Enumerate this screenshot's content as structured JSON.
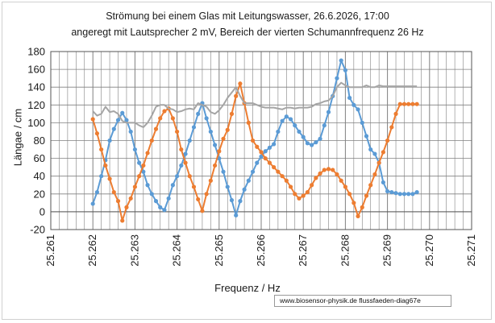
{
  "chart_data": {
    "type": "line",
    "title_line1": "Strömung bei einem Glas mit  Leitungswasser, 26.6.2026, 17:00",
    "title_line2": "angeregt mit Lautsprecher 2 mV,  Bereich der vierten Schumannfrequenz 26 Hz",
    "xlabel": "Frequenz / Hz",
    "ylabel": "Längae / cm",
    "xlim": [
      25.261,
      25.271
    ],
    "ylim": [
      -20,
      180
    ],
    "xticks": [
      "25.261",
      "25.262",
      "25.263",
      "25.264",
      "25.265",
      "25.266",
      "25.267",
      "25.268",
      "25.269",
      "25.270",
      "25.271"
    ],
    "yticks": [
      "-20",
      "0",
      "20",
      "40",
      "60",
      "80",
      "100",
      "120",
      "140",
      "160",
      "180"
    ],
    "grid": true,
    "minor_x_grid_step": 0.0002,
    "credit": "www.biosensor-physik.de  flussfaeden-diag67e",
    "colors": {
      "blue": "#5b9bd5",
      "orange": "#ed7d31",
      "gray": "#a5a5a5",
      "grid": "#808080"
    },
    "series": [
      {
        "color": "blue",
        "markers": true,
        "x": [
          25.262,
          25.2621,
          25.2622,
          25.2623,
          25.2624,
          25.2625,
          25.2626,
          25.2627,
          25.2628,
          25.2629,
          25.263,
          25.2631,
          25.2632,
          25.2633,
          25.2634,
          25.2635,
          25.2636,
          25.2637,
          25.2638,
          25.2639,
          25.264,
          25.2641,
          25.2642,
          25.2643,
          25.2644,
          25.2645,
          25.2646,
          25.2647,
          25.2648,
          25.2649,
          25.265,
          25.2651,
          25.2652,
          25.2653,
          25.2654,
          25.2655,
          25.2656,
          25.2657,
          25.2658,
          25.2659,
          25.266,
          25.2661,
          25.2662,
          25.2663,
          25.2664,
          25.2665,
          25.2666,
          25.2667,
          25.2668,
          25.2669,
          25.267,
          25.2671,
          25.2672,
          25.2673,
          25.2674,
          25.2675,
          25.2676,
          25.2677,
          25.2678,
          25.2679,
          25.268,
          25.2681,
          25.2682,
          25.2683,
          25.2684,
          25.2685,
          25.2686,
          25.2687,
          25.2688,
          25.2689,
          25.269,
          25.2691,
          25.2692,
          25.2693,
          25.2694,
          25.2695,
          25.2696,
          25.2697
        ],
        "y": [
          9,
          22,
          40,
          58,
          80,
          93,
          103,
          111,
          103,
          90,
          70,
          55,
          45,
          30,
          20,
          12,
          5,
          2,
          15,
          30,
          40,
          52,
          65,
          80,
          95,
          110,
          122,
          105,
          90,
          75,
          60,
          45,
          28,
          13,
          -4,
          12,
          25,
          35,
          45,
          55,
          62,
          68,
          72,
          76,
          90,
          102,
          107,
          104,
          97,
          90,
          84,
          77,
          75,
          78,
          82,
          97,
          112,
          130,
          150,
          170,
          159,
          128,
          120,
          115,
          100,
          85,
          70,
          65,
          55,
          33,
          23,
          22,
          21,
          20,
          20,
          20,
          20,
          22
        ],
        "x_note": "",
        "y_note": ""
      },
      {
        "color": "orange",
        "markers": true,
        "x": [
          25.262,
          25.2621,
          25.2622,
          25.2623,
          25.2624,
          25.2625,
          25.2626,
          25.2627,
          25.2628,
          25.2629,
          25.263,
          25.2631,
          25.2632,
          25.2633,
          25.2634,
          25.2635,
          25.2636,
          25.2637,
          25.2638,
          25.2639,
          25.264,
          25.2641,
          25.2642,
          25.2643,
          25.2644,
          25.2645,
          25.2646,
          25.2647,
          25.2648,
          25.2649,
          25.265,
          25.2651,
          25.2652,
          25.2653,
          25.2654,
          25.2655,
          25.2656,
          25.2657,
          25.2658,
          25.2659,
          25.266,
          25.2661,
          25.2662,
          25.2663,
          25.2664,
          25.2665,
          25.2666,
          25.2667,
          25.2668,
          25.2669,
          25.267,
          25.2671,
          25.2672,
          25.2673,
          25.2674,
          25.2675,
          25.2676,
          25.2677,
          25.2678,
          25.2679,
          25.268,
          25.2681,
          25.2682,
          25.2683,
          25.2684,
          25.2685,
          25.2686,
          25.2687,
          25.2688,
          25.2689,
          25.269,
          25.2691,
          25.2692,
          25.2693,
          25.2694,
          25.2695,
          25.2696,
          25.2697
        ],
        "y": [
          104,
          88,
          70,
          52,
          37,
          22,
          12,
          -10,
          5,
          15,
          28,
          40,
          52,
          66,
          80,
          93,
          105,
          113,
          116,
          105,
          90,
          70,
          55,
          40,
          28,
          14,
          1,
          20,
          35,
          52,
          68,
          82,
          92,
          110,
          130,
          144,
          122,
          100,
          80,
          73,
          67,
          60,
          55,
          50,
          45,
          40,
          35,
          28,
          20,
          15,
          18,
          22,
          30,
          38,
          43,
          47,
          48,
          47,
          42,
          35,
          28,
          20,
          10,
          -5,
          5,
          18,
          30,
          42,
          55,
          67,
          80,
          95,
          110,
          121,
          121,
          121,
          121,
          121
        ],
        "x_note": "",
        "y_note": ""
      },
      {
        "color": "gray",
        "markers": false,
        "x": [
          25.262,
          25.2621,
          25.2622,
          25.2623,
          25.2624,
          25.2625,
          25.2626,
          25.2627,
          25.2628,
          25.2629,
          25.263,
          25.2631,
          25.2632,
          25.2633,
          25.2634,
          25.2635,
          25.2636,
          25.2637,
          25.2638,
          25.2639,
          25.264,
          25.2641,
          25.2642,
          25.2643,
          25.2644,
          25.2645,
          25.2646,
          25.2647,
          25.2648,
          25.2649,
          25.265,
          25.2651,
          25.2652,
          25.2653,
          25.2654,
          25.2655,
          25.2656,
          25.2657,
          25.2658,
          25.2659,
          25.266,
          25.2661,
          25.2662,
          25.2663,
          25.2664,
          25.2665,
          25.2666,
          25.2667,
          25.2668,
          25.2669,
          25.267,
          25.2671,
          25.2672,
          25.2673,
          25.2674,
          25.2675,
          25.2676,
          25.2677,
          25.2678,
          25.2679,
          25.268,
          25.2681,
          25.2682,
          25.2683,
          25.2684,
          25.2685,
          25.2686,
          25.2687,
          25.2688,
          25.2689,
          25.269,
          25.2691,
          25.2692,
          25.2693,
          25.2694,
          25.2695,
          25.2696,
          25.2697
        ],
        "y": [
          113,
          108,
          110,
          118,
          112,
          113,
          110,
          102,
          100,
          100,
          100,
          97,
          95,
          100,
          108,
          118,
          120,
          120,
          116,
          115,
          112,
          113,
          115,
          116,
          115,
          122,
          120,
          118,
          112,
          110,
          114,
          120,
          128,
          134,
          140,
          130,
          122,
          122,
          122,
          120,
          118,
          117,
          117,
          117,
          116,
          115,
          117,
          117,
          116,
          117,
          117,
          117,
          118,
          121,
          122,
          124,
          125,
          130,
          140,
          145,
          142,
          140,
          140,
          140,
          140,
          142,
          140,
          140,
          142,
          141,
          141,
          141,
          141,
          141,
          141,
          141,
          141,
          141
        ],
        "x_note": "",
        "y_note": ""
      }
    ]
  }
}
